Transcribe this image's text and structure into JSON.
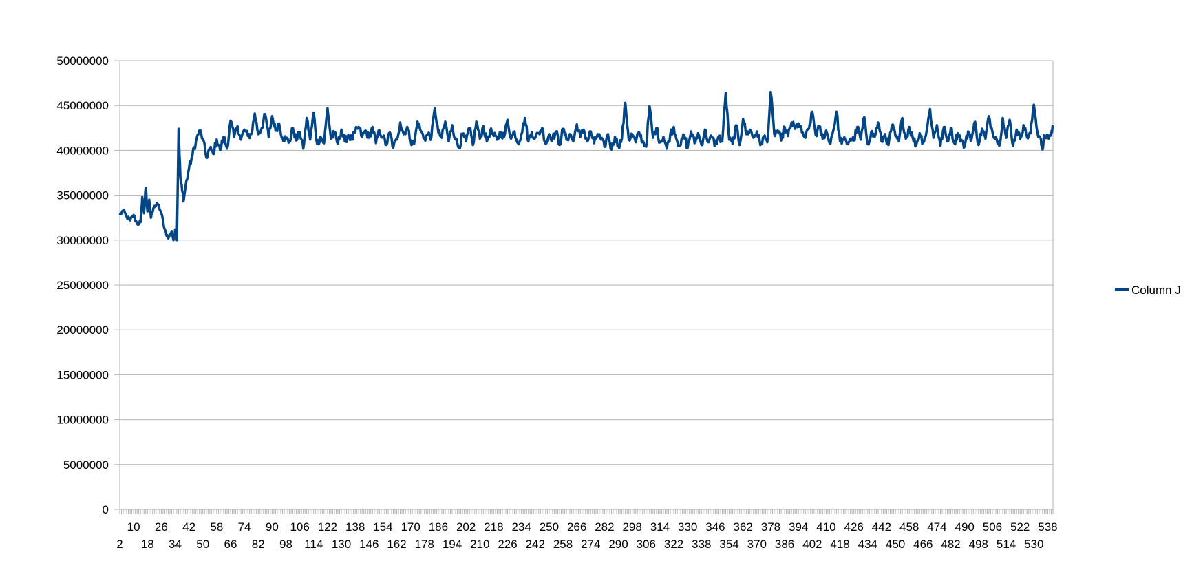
{
  "chart_data": {
    "type": "line",
    "title": "",
    "xlabel": "",
    "ylabel": "",
    "x_start": 2,
    "x_end": 541,
    "x_tick_labels_row1": [
      "10",
      "26",
      "42",
      "58",
      "74",
      "90",
      "106",
      "122",
      "138",
      "154",
      "170",
      "186",
      "202",
      "218",
      "234",
      "250",
      "266",
      "282",
      "298",
      "314",
      "330",
      "346",
      "362",
      "378",
      "394",
      "410",
      "426",
      "442",
      "458",
      "474",
      "490",
      "506",
      "522",
      "538"
    ],
    "x_tick_labels_row2": [
      "2",
      "18",
      "34",
      "50",
      "66",
      "82",
      "98",
      "114",
      "130",
      "146",
      "162",
      "178",
      "194",
      "210",
      "226",
      "242",
      "258",
      "274",
      "290",
      "306",
      "322",
      "338",
      "354",
      "370",
      "386",
      "402",
      "418",
      "434",
      "450",
      "466",
      "482",
      "498",
      "514",
      "530"
    ],
    "y_ticks": [
      "0",
      "5000000",
      "10000000",
      "15000000",
      "20000000",
      "25000000",
      "30000000",
      "35000000",
      "40000000",
      "45000000",
      "50000000"
    ],
    "ylim": [
      0,
      50000000
    ],
    "grid": true,
    "legend_position": "right",
    "series": [
      {
        "name": "Column J",
        "color": "#004586",
        "keypoints": [
          [
            2,
            32800000
          ],
          [
            4,
            33300000
          ],
          [
            6,
            32600000
          ],
          [
            8,
            32200000
          ],
          [
            10,
            32800000
          ],
          [
            12,
            31800000
          ],
          [
            14,
            32000000
          ],
          [
            15,
            34800000
          ],
          [
            16,
            33000000
          ],
          [
            17,
            35800000
          ],
          [
            18,
            33200000
          ],
          [
            19,
            34500000
          ],
          [
            20,
            32500000
          ],
          [
            22,
            33800000
          ],
          [
            24,
            34000000
          ],
          [
            26,
            33000000
          ],
          [
            28,
            31200000
          ],
          [
            30,
            30200000
          ],
          [
            32,
            31000000
          ],
          [
            33,
            30000000
          ],
          [
            34,
            31200000
          ],
          [
            35,
            30000000
          ],
          [
            36,
            42400000
          ],
          [
            37,
            37000000
          ],
          [
            38,
            35500000
          ],
          [
            39,
            34500000
          ],
          [
            40,
            36000000
          ],
          [
            42,
            38000000
          ],
          [
            44,
            39500000
          ],
          [
            46,
            41000000
          ],
          [
            48,
            42200000
          ],
          [
            50,
            41300000
          ],
          [
            52,
            39200000
          ],
          [
            54,
            40200000
          ],
          [
            56,
            39600000
          ],
          [
            58,
            41200000
          ],
          [
            60,
            40000000
          ],
          [
            62,
            41500000
          ],
          [
            64,
            40200000
          ],
          [
            66,
            43300000
          ],
          [
            68,
            41500000
          ],
          [
            70,
            42700000
          ],
          [
            72,
            41200000
          ],
          [
            74,
            42300000
          ],
          [
            76,
            41600000
          ],
          [
            78,
            41800000
          ],
          [
            80,
            44100000
          ],
          [
            82,
            41800000
          ],
          [
            84,
            42500000
          ],
          [
            86,
            44000000
          ],
          [
            88,
            41500000
          ],
          [
            90,
            43800000
          ],
          [
            92,
            42200000
          ],
          [
            94,
            43000000
          ],
          [
            96,
            41400000
          ],
          [
            98,
            41300000
          ],
          [
            100,
            40900000
          ],
          [
            102,
            42500000
          ],
          [
            104,
            41100000
          ],
          [
            106,
            42000000
          ],
          [
            108,
            40200000
          ],
          [
            110,
            43600000
          ],
          [
            112,
            41200000
          ],
          [
            114,
            44200000
          ],
          [
            116,
            40700000
          ],
          [
            118,
            41500000
          ],
          [
            120,
            40800000
          ],
          [
            122,
            44700000
          ],
          [
            124,
            41300000
          ],
          [
            126,
            41900000
          ],
          [
            128,
            40700000
          ],
          [
            130,
            42300000
          ],
          [
            132,
            41000000
          ],
          [
            134,
            41700000
          ],
          [
            136,
            41200000
          ],
          [
            138,
            42000000
          ],
          [
            140,
            42600000
          ],
          [
            142,
            41500000
          ],
          [
            144,
            42200000
          ],
          [
            146,
            41400000
          ],
          [
            148,
            42600000
          ],
          [
            150,
            40800000
          ],
          [
            152,
            42200000
          ],
          [
            154,
            41500000
          ],
          [
            156,
            40600000
          ],
          [
            158,
            42000000
          ],
          [
            160,
            40300000
          ],
          [
            162,
            41200000
          ],
          [
            164,
            43100000
          ],
          [
            166,
            41800000
          ],
          [
            168,
            42600000
          ],
          [
            170,
            41100000
          ],
          [
            172,
            40700000
          ],
          [
            174,
            43200000
          ],
          [
            176,
            42100000
          ],
          [
            178,
            41300000
          ],
          [
            180,
            41800000
          ],
          [
            182,
            41500000
          ],
          [
            184,
            44700000
          ],
          [
            186,
            42000000
          ],
          [
            188,
            41400000
          ],
          [
            190,
            43200000
          ],
          [
            192,
            41000000
          ],
          [
            194,
            42800000
          ],
          [
            196,
            41200000
          ],
          [
            198,
            40300000
          ],
          [
            200,
            41800000
          ],
          [
            202,
            41000000
          ],
          [
            204,
            42500000
          ],
          [
            206,
            40600000
          ],
          [
            208,
            43200000
          ],
          [
            210,
            41300000
          ],
          [
            212,
            42700000
          ],
          [
            214,
            41000000
          ],
          [
            216,
            42200000
          ],
          [
            218,
            41600000
          ],
          [
            220,
            41200000
          ],
          [
            222,
            42000000
          ],
          [
            224,
            41500000
          ],
          [
            226,
            43400000
          ],
          [
            228,
            41300000
          ],
          [
            230,
            42100000
          ],
          [
            232,
            40800000
          ],
          [
            234,
            41800000
          ],
          [
            236,
            43600000
          ],
          [
            238,
            41000000
          ],
          [
            240,
            42000000
          ],
          [
            242,
            41400000
          ],
          [
            244,
            41900000
          ],
          [
            246,
            42500000
          ],
          [
            248,
            40700000
          ],
          [
            250,
            41800000
          ],
          [
            252,
            41300000
          ],
          [
            254,
            42100000
          ],
          [
            256,
            40600000
          ],
          [
            258,
            42400000
          ],
          [
            260,
            41200000
          ],
          [
            262,
            41800000
          ],
          [
            264,
            41000000
          ],
          [
            266,
            42900000
          ],
          [
            268,
            41500000
          ],
          [
            270,
            42300000
          ],
          [
            272,
            41000000
          ],
          [
            274,
            42100000
          ],
          [
            276,
            40800000
          ],
          [
            278,
            41800000
          ],
          [
            280,
            41200000
          ],
          [
            282,
            40400000
          ],
          [
            284,
            41800000
          ],
          [
            286,
            40100000
          ],
          [
            288,
            41500000
          ],
          [
            290,
            40500000
          ],
          [
            292,
            41300000
          ],
          [
            294,
            45300000
          ],
          [
            296,
            41200000
          ],
          [
            298,
            41800000
          ],
          [
            300,
            40900000
          ],
          [
            302,
            42000000
          ],
          [
            304,
            41000000
          ],
          [
            306,
            40400000
          ],
          [
            308,
            44900000
          ],
          [
            310,
            41400000
          ],
          [
            312,
            42500000
          ],
          [
            314,
            40900000
          ],
          [
            316,
            41500000
          ],
          [
            318,
            40200000
          ],
          [
            320,
            41800000
          ],
          [
            322,
            42600000
          ],
          [
            324,
            41000000
          ],
          [
            326,
            40600000
          ],
          [
            328,
            41700000
          ],
          [
            330,
            40300000
          ],
          [
            332,
            42100000
          ],
          [
            334,
            40800000
          ],
          [
            336,
            41900000
          ],
          [
            338,
            40600000
          ],
          [
            340,
            42300000
          ],
          [
            342,
            40900000
          ],
          [
            344,
            41500000
          ],
          [
            346,
            40600000
          ],
          [
            348,
            41500000
          ],
          [
            350,
            41000000
          ],
          [
            352,
            46400000
          ],
          [
            354,
            41200000
          ],
          [
            356,
            40700000
          ],
          [
            358,
            42800000
          ],
          [
            360,
            40600000
          ],
          [
            362,
            43500000
          ],
          [
            364,
            41800000
          ],
          [
            366,
            42300000
          ],
          [
            368,
            41400000
          ],
          [
            370,
            42100000
          ],
          [
            372,
            40600000
          ],
          [
            374,
            41500000
          ],
          [
            376,
            40900000
          ],
          [
            378,
            46500000
          ],
          [
            380,
            41800000
          ],
          [
            382,
            42200000
          ],
          [
            384,
            41100000
          ],
          [
            386,
            42600000
          ],
          [
            388,
            41600000
          ],
          [
            390,
            43100000
          ],
          [
            392,
            42400000
          ],
          [
            394,
            43000000
          ],
          [
            396,
            42000000
          ],
          [
            398,
            41400000
          ],
          [
            400,
            42400000
          ],
          [
            402,
            44300000
          ],
          [
            404,
            41700000
          ],
          [
            406,
            42600000
          ],
          [
            408,
            41300000
          ],
          [
            410,
            42200000
          ],
          [
            412,
            40800000
          ],
          [
            414,
            42100000
          ],
          [
            416,
            44300000
          ],
          [
            418,
            41000000
          ],
          [
            420,
            41200000
          ],
          [
            422,
            40700000
          ],
          [
            424,
            41300000
          ],
          [
            426,
            41100000
          ],
          [
            428,
            42600000
          ],
          [
            430,
            41200000
          ],
          [
            432,
            43700000
          ],
          [
            434,
            40700000
          ],
          [
            436,
            42000000
          ],
          [
            438,
            41500000
          ],
          [
            440,
            43100000
          ],
          [
            442,
            41000000
          ],
          [
            444,
            41800000
          ],
          [
            446,
            40600000
          ],
          [
            448,
            42800000
          ],
          [
            450,
            41600000
          ],
          [
            452,
            41000000
          ],
          [
            454,
            43600000
          ],
          [
            456,
            41300000
          ],
          [
            458,
            42600000
          ],
          [
            460,
            41400000
          ],
          [
            462,
            40600000
          ],
          [
            464,
            41900000
          ],
          [
            466,
            40900000
          ],
          [
            468,
            42100000
          ],
          [
            470,
            44600000
          ],
          [
            472,
            41400000
          ],
          [
            474,
            42800000
          ],
          [
            476,
            40500000
          ],
          [
            478,
            42600000
          ],
          [
            480,
            41000000
          ],
          [
            482,
            42500000
          ],
          [
            484,
            40800000
          ],
          [
            486,
            41900000
          ],
          [
            488,
            41200000
          ],
          [
            490,
            40400000
          ],
          [
            492,
            42100000
          ],
          [
            494,
            41300000
          ],
          [
            496,
            43200000
          ],
          [
            498,
            40600000
          ],
          [
            500,
            42400000
          ],
          [
            502,
            41300000
          ],
          [
            504,
            43800000
          ],
          [
            506,
            42100000
          ],
          [
            508,
            41500000
          ],
          [
            510,
            40500000
          ],
          [
            512,
            43600000
          ],
          [
            514,
            41400000
          ],
          [
            516,
            43400000
          ],
          [
            518,
            40500000
          ],
          [
            520,
            42300000
          ],
          [
            522,
            41300000
          ],
          [
            524,
            42800000
          ],
          [
            526,
            41500000
          ],
          [
            528,
            41900000
          ],
          [
            530,
            45100000
          ],
          [
            532,
            42000000
          ],
          [
            534,
            41300000
          ],
          [
            535,
            40100000
          ],
          [
            536,
            41600000
          ],
          [
            538,
            41500000
          ],
          [
            540,
            41800000
          ],
          [
            541,
            42800000
          ]
        ]
      }
    ]
  }
}
